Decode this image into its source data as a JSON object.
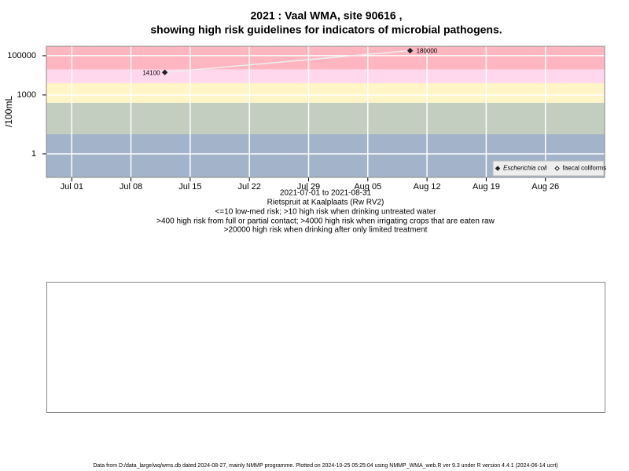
{
  "chart_data": {
    "type": "line",
    "log_y": true,
    "grid": true,
    "title": "2021 : Vaal WMA, site 90616 ,",
    "subtitle": "showing high risk guidelines for indicators of microbial pathogens.",
    "y_label": "/100mL",
    "x_label": "2021-07-01 to 2021-08-31",
    "notes": [
      "Rietspruit at Kaalplaats (Rw RV2)",
      "<=10 low-med risk; >10 high risk when drinking untreated water",
      ">400 high risk from full or partial contact; >4000 high risk when irrigating crops that are eaten raw",
      ">20000 high risk when drinking after only limited treatment"
    ],
    "footer": "Data from D:/data_large/wq/wms.db dated 2024-08-27, mainly NMMP programme. Plotted on 2024-10-25 05:25:04 using NMMP_WMA_web.R ver 9.3 under R version 4.4.1 (2024-06-14 ucrt)",
    "xlim": [
      "2021-06-28",
      "2021-09-02"
    ],
    "xticks": [
      {
        "value": "2021-07-01",
        "label": "Jul 01"
      },
      {
        "value": "2021-07-08",
        "label": "Jul 08"
      },
      {
        "value": "2021-07-15",
        "label": "Jul 15"
      },
      {
        "value": "2021-07-22",
        "label": "Jul 22"
      },
      {
        "value": "2021-07-29",
        "label": "Jul 29"
      },
      {
        "value": "2021-08-05",
        "label": "Aug 05"
      },
      {
        "value": "2021-08-12",
        "label": "Aug 12"
      },
      {
        "value": "2021-08-19",
        "label": "Aug 19"
      },
      {
        "value": "2021-08-26",
        "label": "Aug 26"
      }
    ],
    "ylim": [
      0.063,
      300000
    ],
    "yticks": [
      1,
      1000,
      100000
    ],
    "band_breaks": [
      10,
      400,
      4000,
      20000
    ],
    "band_colors": [
      "#a3b3c9",
      "#c3cdc0",
      "#fff5c6",
      "#ffd8ee",
      "#ffb6c1"
    ],
    "legend_position": "bottom-right",
    "x": [
      "2021-07-12",
      "2021-08-10"
    ],
    "series": [
      {
        "name": "Escherichia coli",
        "color": "#222222",
        "marker": "filled",
        "values": [
          14100,
          180000
        ]
      },
      {
        "name": "faecal coliforms",
        "color": "#222222",
        "marker": "open",
        "values": [
          null,
          null
        ]
      }
    ]
  }
}
